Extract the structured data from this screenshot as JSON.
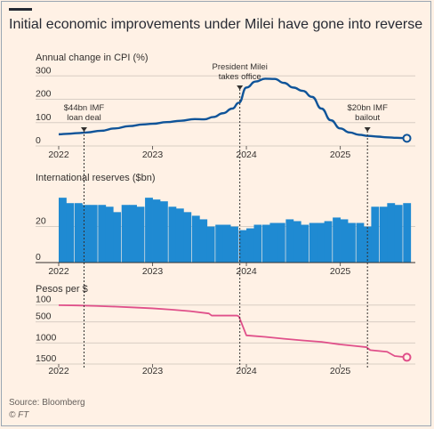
{
  "title": "Initial economic improvements under Milei have gone into reverse",
  "source": "Source: Bloomberg",
  "credit": "© FT",
  "colors": {
    "background": "#fff1e5",
    "line_blue": "#0f5499",
    "bar_blue": "#1f8ad2",
    "line_pink": "#e0508a",
    "gridline": "#d8cec4",
    "text": "#33302e"
  },
  "events": [
    {
      "date": 2022.27,
      "label_lines": [
        "$44bn IMF",
        "loan deal"
      ]
    },
    {
      "date": 2023.93,
      "label_lines": [
        "President Milei",
        "takes office"
      ]
    },
    {
      "date": 2025.29,
      "label_lines": [
        "$20bn IMF",
        "bailout"
      ]
    }
  ],
  "chart_data": [
    {
      "type": "line",
      "title": "Annual change in CPI (%)",
      "xlim": [
        2022,
        2025.8
      ],
      "ylim": [
        0,
        320
      ],
      "yticks": [
        0,
        100,
        200,
        300
      ],
      "xticks": [
        2022,
        2023,
        2024,
        2025
      ],
      "x": [
        2022.0,
        2022.1,
        2022.2,
        2022.3,
        2022.45,
        2022.6,
        2022.75,
        2022.9,
        2023.0,
        2023.15,
        2023.3,
        2023.45,
        2023.55,
        2023.65,
        2023.75,
        2023.85,
        2023.92,
        2024.0,
        2024.1,
        2024.2,
        2024.3,
        2024.4,
        2024.5,
        2024.6,
        2024.7,
        2024.8,
        2024.9,
        2025.0,
        2025.1,
        2025.2,
        2025.3,
        2025.4,
        2025.5,
        2025.6,
        2025.71
      ],
      "y": [
        50,
        52,
        55,
        58,
        65,
        75,
        85,
        92,
        95,
        102,
        108,
        115,
        114,
        124,
        140,
        160,
        185,
        250,
        276,
        288,
        287,
        270,
        250,
        236,
        210,
        160,
        110,
        75,
        58,
        48,
        43,
        40,
        37,
        35,
        33
      ],
      "grid": true
    },
    {
      "type": "bar",
      "title": "International reserves ($bn)",
      "xlim": [
        2022,
        2025.8
      ],
      "ylim": [
        0,
        42
      ],
      "yticks": [
        0,
        20
      ],
      "xticks": [
        2022,
        2023,
        2024,
        2025
      ],
      "x": [
        2022.04,
        2022.12,
        2022.21,
        2022.29,
        2022.37,
        2022.46,
        2022.54,
        2022.62,
        2022.71,
        2022.79,
        2022.87,
        2022.96,
        2023.04,
        2023.12,
        2023.21,
        2023.29,
        2023.37,
        2023.46,
        2023.54,
        2023.62,
        2023.71,
        2023.79,
        2023.87,
        2023.96,
        2024.04,
        2024.12,
        2024.21,
        2024.29,
        2024.37,
        2024.46,
        2024.54,
        2024.62,
        2024.71,
        2024.79,
        2024.87,
        2024.96,
        2025.04,
        2025.12,
        2025.21,
        2025.29,
        2025.37,
        2025.46,
        2025.54,
        2025.62,
        2025.71
      ],
      "values": [
        36,
        33,
        33,
        32,
        32,
        32,
        31,
        28,
        32,
        32,
        31,
        36,
        35,
        34,
        31,
        30,
        28,
        26,
        24,
        20,
        21,
        21,
        20,
        18,
        19,
        21,
        21,
        22,
        22,
        24,
        23,
        21,
        22,
        22,
        23,
        25,
        24,
        22,
        22,
        20,
        31,
        31,
        33,
        32,
        33
      ],
      "grid": true
    },
    {
      "type": "line",
      "title": "Pesos per $",
      "inverted_axis": true,
      "xlim": [
        2022,
        2025.8
      ],
      "ylim": [
        0,
        1500
      ],
      "yticks": [
        100,
        500,
        1000,
        1500
      ],
      "xticks": [
        2022,
        2023,
        2024,
        2025
      ],
      "x": [
        2022.0,
        2022.2,
        2022.4,
        2022.6,
        2022.8,
        2023.0,
        2023.2,
        2023.4,
        2023.6,
        2023.63,
        2023.9,
        2023.92,
        2024.0,
        2024.2,
        2024.4,
        2024.6,
        2024.8,
        2025.0,
        2025.15,
        2025.28,
        2025.32,
        2025.5,
        2025.58,
        2025.71
      ],
      "y": [
        103,
        110,
        122,
        138,
        157,
        178,
        208,
        245,
        300,
        350,
        350,
        370,
        820,
        855,
        900,
        940,
        975,
        1035,
        1070,
        1100,
        1170,
        1210,
        1310,
        1340
      ],
      "grid": true
    }
  ]
}
